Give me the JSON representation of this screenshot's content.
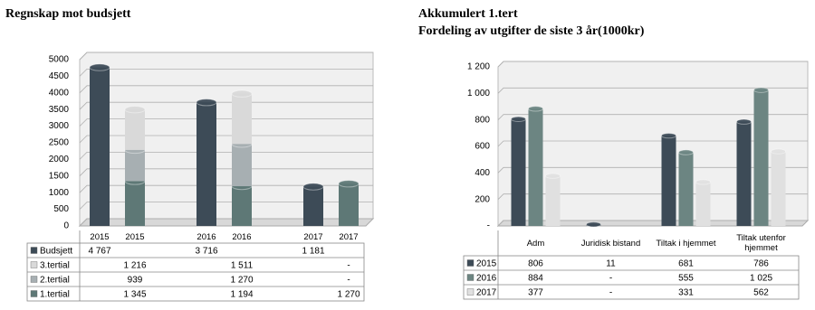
{
  "chart_data": [
    {
      "type": "bar",
      "stacked": true,
      "title": "Regnskap mot budsjett",
      "categories": [
        "2015",
        "2015",
        "2016",
        "2016",
        "2017",
        "2017"
      ],
      "series": [
        {
          "name": "Budsjett",
          "color": "#3d4b57",
          "values": [
            4767,
            null,
            3716,
            null,
            1181,
            null
          ],
          "value_labels": [
            "4 767",
            null,
            "3 716",
            null,
            "1 181",
            null
          ]
        },
        {
          "name": "3.tertial",
          "color": "#d9d9d9",
          "values": [
            null,
            1216,
            null,
            1511,
            null,
            null
          ],
          "value_labels": [
            null,
            "1 216",
            null,
            "1 511",
            null,
            "-"
          ]
        },
        {
          "name": "2.tertial",
          "color": "#a7afb2",
          "values": [
            null,
            939,
            null,
            1270,
            null,
            null
          ],
          "value_labels": [
            null,
            "939",
            null,
            "1 270",
            null,
            "-"
          ]
        },
        {
          "name": "1.tertial",
          "color": "#5e7876",
          "values": [
            null,
            1345,
            null,
            1194,
            null,
            1270
          ],
          "value_labels": [
            null,
            "1 345",
            null,
            "1 194",
            null,
            "1 270"
          ]
        }
      ],
      "ylim": [
        0,
        5000
      ],
      "yticks": [
        0,
        500,
        1000,
        1500,
        2000,
        2500,
        3000,
        3500,
        4000,
        4500,
        5000
      ],
      "grid": true
    },
    {
      "type": "bar",
      "stacked": false,
      "title": "Akkumulert 1.tert",
      "subtitle": "Fordeling av utgifter de siste 3 år(1000kr)",
      "categories": [
        "Adm",
        "Juridisk bistand",
        "Tiltak i hjemmet",
        "Tiltak utenfor hjemmet"
      ],
      "series": [
        {
          "name": "2015",
          "color": "#3d4b57",
          "values": [
            806,
            11,
            681,
            786
          ],
          "value_labels": [
            "806",
            "11",
            "681",
            "786"
          ]
        },
        {
          "name": "2016",
          "color": "#6c8582",
          "values": [
            884,
            null,
            555,
            1025
          ],
          "value_labels": [
            "884",
            "-",
            "555",
            "1 025"
          ]
        },
        {
          "name": "2017",
          "color": "#e0e0e0",
          "values": [
            377,
            null,
            331,
            562
          ],
          "value_labels": [
            "377",
            "-",
            "331",
            "562"
          ]
        }
      ],
      "ylim": [
        0,
        1200
      ],
      "yticks": [
        {
          "value": 0,
          "label": "-"
        },
        200,
        400,
        600,
        800,
        {
          "value": 1000,
          "label": "1 000"
        },
        {
          "value": 1200,
          "label": "1 200"
        }
      ],
      "grid": true
    }
  ]
}
